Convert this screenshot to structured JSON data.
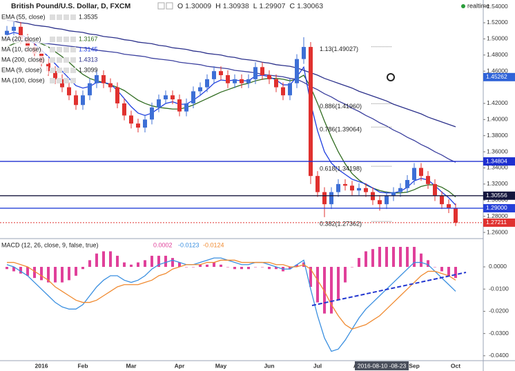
{
  "chart_data": [
    {
      "type": "candlestick",
      "title": "British Pound/U.S. Dollar, D, FXCM",
      "ohlc_readout": [
        {
          "key": "O",
          "value": 1.30009
        },
        {
          "key": "H",
          "value": 1.30938
        },
        {
          "key": "L",
          "value": 1.29907
        },
        {
          "key": "C",
          "value": 1.30063
        }
      ],
      "status": "realtime",
      "open": [
        1.505,
        1.51,
        1.515,
        1.5,
        1.49,
        1.482,
        1.47,
        1.46,
        1.45,
        1.44,
        1.43,
        1.418,
        1.43,
        1.445,
        1.455,
        1.445,
        1.44,
        1.42,
        1.405,
        1.395,
        1.39,
        1.4,
        1.415,
        1.425,
        1.43,
        1.425,
        1.41,
        1.42,
        1.435,
        1.44,
        1.45,
        1.46,
        1.455,
        1.445,
        1.45,
        1.445,
        1.45,
        1.465,
        1.455,
        1.45,
        1.44,
        1.43,
        1.445,
        1.475,
        1.49,
        1.33,
        1.31,
        1.295,
        1.31,
        1.32,
        1.318,
        1.312,
        1.315,
        1.31,
        1.3,
        1.295,
        1.305,
        1.31,
        1.315,
        1.325,
        1.34,
        1.33,
        1.32,
        1.305,
        1.295,
        1.29
      ],
      "high": [
        1.516,
        1.521,
        1.521,
        1.506,
        1.496,
        1.488,
        1.476,
        1.466,
        1.456,
        1.446,
        1.436,
        1.436,
        1.451,
        1.461,
        1.461,
        1.451,
        1.446,
        1.426,
        1.411,
        1.401,
        1.406,
        1.421,
        1.431,
        1.436,
        1.436,
        1.431,
        1.426,
        1.441,
        1.446,
        1.456,
        1.466,
        1.466,
        1.461,
        1.456,
        1.456,
        1.456,
        1.471,
        1.471,
        1.461,
        1.456,
        1.446,
        1.451,
        1.481,
        1.502,
        1.496,
        1.336,
        1.316,
        1.316,
        1.326,
        1.326,
        1.324,
        1.321,
        1.321,
        1.316,
        1.306,
        1.311,
        1.316,
        1.321,
        1.331,
        1.346,
        1.346,
        1.336,
        1.326,
        1.311,
        1.301,
        1.296
      ],
      "low": [
        1.499,
        1.504,
        1.494,
        1.484,
        1.476,
        1.464,
        1.454,
        1.444,
        1.434,
        1.424,
        1.412,
        1.412,
        1.424,
        1.439,
        1.439,
        1.434,
        1.414,
        1.399,
        1.389,
        1.384,
        1.384,
        1.394,
        1.409,
        1.419,
        1.419,
        1.404,
        1.404,
        1.414,
        1.429,
        1.434,
        1.444,
        1.449,
        1.439,
        1.439,
        1.439,
        1.439,
        1.444,
        1.449,
        1.444,
        1.434,
        1.424,
        1.424,
        1.439,
        1.469,
        1.32,
        1.304,
        1.279,
        1.289,
        1.304,
        1.312,
        1.306,
        1.306,
        1.304,
        1.294,
        1.287,
        1.289,
        1.299,
        1.304,
        1.309,
        1.319,
        1.324,
        1.314,
        1.299,
        1.289,
        1.284,
        1.268
      ],
      "close": [
        1.51,
        1.515,
        1.5,
        1.49,
        1.482,
        1.47,
        1.46,
        1.45,
        1.44,
        1.43,
        1.418,
        1.43,
        1.445,
        1.455,
        1.445,
        1.44,
        1.42,
        1.405,
        1.395,
        1.39,
        1.4,
        1.415,
        1.425,
        1.43,
        1.425,
        1.41,
        1.42,
        1.435,
        1.44,
        1.45,
        1.46,
        1.455,
        1.445,
        1.45,
        1.445,
        1.45,
        1.465,
        1.455,
        1.45,
        1.44,
        1.43,
        1.445,
        1.475,
        1.49,
        1.33,
        1.31,
        1.295,
        1.31,
        1.32,
        1.318,
        1.312,
        1.315,
        1.31,
        1.3,
        1.295,
        1.305,
        1.31,
        1.315,
        1.325,
        1.34,
        1.33,
        1.32,
        1.305,
        1.295,
        1.29,
        1.272
      ],
      "up_color": "#3d6fd6",
      "down_color": "#e0312f",
      "series": [
        {
          "name": "EMA (55, close)",
          "last": 1.3535
        },
        {
          "name": "MA (20, close)",
          "last": 1.3167,
          "color": "#2f6b1f",
          "values": [
            1.49,
            1.494,
            1.497,
            1.498,
            1.497,
            1.494,
            1.49,
            1.484,
            1.478,
            1.471,
            1.463,
            1.456,
            1.451,
            1.448,
            1.446,
            1.443,
            1.44,
            1.436,
            1.43,
            1.424,
            1.42,
            1.417,
            1.415,
            1.414,
            1.413,
            1.413,
            1.415,
            1.418,
            1.422,
            1.426,
            1.43,
            1.434,
            1.437,
            1.44,
            1.443,
            1.445,
            1.448,
            1.45,
            1.451,
            1.451,
            1.45,
            1.448,
            1.45,
            1.455,
            1.44,
            1.42,
            1.398,
            1.378,
            1.36,
            1.345,
            1.333,
            1.325,
            1.319,
            1.315,
            1.312,
            1.31,
            1.309,
            1.309,
            1.31,
            1.313,
            1.317,
            1.319,
            1.319,
            1.316,
            1.311,
            1.304
          ]
        },
        {
          "name": "MA (10, close)",
          "last": 1.3145,
          "color": "#1f3fe0",
          "values": [
            1.505,
            1.508,
            1.506,
            1.5,
            1.494,
            1.486,
            1.478,
            1.469,
            1.46,
            1.451,
            1.442,
            1.439,
            1.441,
            1.446,
            1.446,
            1.444,
            1.436,
            1.426,
            1.416,
            1.408,
            1.405,
            1.408,
            1.414,
            1.42,
            1.422,
            1.419,
            1.419,
            1.424,
            1.43,
            1.437,
            1.445,
            1.449,
            1.448,
            1.449,
            1.448,
            1.448,
            1.454,
            1.455,
            1.453,
            1.449,
            1.443,
            1.443,
            1.453,
            1.465,
            1.42,
            1.386,
            1.36,
            1.346,
            1.338,
            1.332,
            1.326,
            1.323,
            1.32,
            1.315,
            1.31,
            1.309,
            1.309,
            1.311,
            1.316,
            1.324,
            1.327,
            1.325,
            1.318,
            1.31,
            1.303,
            1.294
          ]
        },
        {
          "name": "MA (200, close)",
          "last": 1.4313,
          "color": "#2a2f8a",
          "values": [
            1.523,
            1.522,
            1.52,
            1.519,
            1.517,
            1.516,
            1.515,
            1.513,
            1.512,
            1.51,
            1.509,
            1.508,
            1.506,
            1.505,
            1.503,
            1.502,
            1.501,
            1.499,
            1.498,
            1.496,
            1.495,
            1.494,
            1.492,
            1.491,
            1.489,
            1.488,
            1.487,
            1.485,
            1.484,
            1.482,
            1.481,
            1.48,
            1.478,
            1.477,
            1.475,
            1.474,
            1.473,
            1.471,
            1.47,
            1.468,
            1.467,
            1.466,
            1.464,
            1.461,
            1.458,
            1.455,
            1.451,
            1.448,
            1.445,
            1.442,
            1.439,
            1.435,
            1.432,
            1.429,
            1.426,
            1.423,
            1.419,
            1.416,
            1.413,
            1.41,
            1.407,
            1.403,
            1.4,
            1.397,
            1.394,
            1.391
          ]
        },
        {
          "name": "EMA (9, close)",
          "last": 1.3099
        },
        {
          "name": "MA (100, close)",
          "color": "#3a3f9e",
          "values": [
            1.5,
            1.499,
            1.498,
            1.497,
            1.496,
            1.495,
            1.494,
            1.493,
            1.492,
            1.491,
            1.49,
            1.489,
            1.488,
            1.486,
            1.485,
            1.484,
            1.483,
            1.481,
            1.48,
            1.479,
            1.478,
            1.476,
            1.475,
            1.474,
            1.473,
            1.471,
            1.47,
            1.469,
            1.468,
            1.466,
            1.465,
            1.464,
            1.463,
            1.461,
            1.46,
            1.459,
            1.458,
            1.456,
            1.455,
            1.454,
            1.453,
            1.451,
            1.45,
            1.446,
            1.441,
            1.437,
            1.432,
            1.428,
            1.423,
            1.419,
            1.414,
            1.41,
            1.405,
            1.401,
            1.396,
            1.392,
            1.387,
            1.383,
            1.378,
            1.374,
            1.369,
            1.365,
            1.36,
            1.356,
            1.351,
            1.347
          ]
        }
      ],
      "fib_levels": [
        {
          "label": "1.13(1.49027)",
          "value": 1.49027
        },
        {
          "label": "0.886(1.41960)",
          "value": 1.4196
        },
        {
          "label": "0.786(1.39064)",
          "value": 1.39064
        },
        {
          "label": "0.618(1.34198)",
          "value": 1.34198
        },
        {
          "label": "0.382(1.27362)",
          "value": 1.27362
        }
      ],
      "price_levels": [
        {
          "value": 1.45262,
          "label": "1.45262",
          "color": "#2f63d8",
          "line": "none"
        },
        {
          "value": 1.34804,
          "label": "1.34804",
          "color": "#1d2fd0",
          "line": "solid"
        },
        {
          "value": 1.30556,
          "label": "1.30556",
          "color": "#14163d",
          "line": "solid"
        },
        {
          "value": 1.29,
          "label": "1.29000",
          "color": "#2540d8",
          "line": "solid"
        },
        {
          "value": 1.27211,
          "label": "1.27211",
          "color": "#e0312f",
          "line": "dotted"
        }
      ],
      "ylim": [
        1.2532,
        1.5465
      ],
      "yticks": [
        {
          "value": 1.54,
          "label": "1.54000"
        },
        {
          "value": 1.52,
          "label": "1.52000"
        },
        {
          "value": 1.5,
          "label": "1.50000"
        },
        {
          "value": 1.48,
          "label": "1.48000"
        },
        {
          "value": 1.46,
          "label": "1.46000"
        },
        {
          "value": 1.42,
          "label": "1.42000"
        },
        {
          "value": 1.4,
          "label": "1.40000"
        },
        {
          "value": 1.38,
          "label": "1.38000"
        },
        {
          "value": 1.36,
          "label": "1.36000"
        },
        {
          "value": 1.34,
          "label": "1.34000"
        },
        {
          "value": 1.32,
          "label": "1.32000"
        },
        {
          "value": 1.3,
          "label": "1.30000"
        },
        {
          "value": 1.28,
          "label": "1.28000"
        },
        {
          "value": 1.26,
          "label": "1.26000"
        }
      ],
      "grid": false
    },
    {
      "type": "macd",
      "title": "MACD (12, 26, close, 9, false, true)",
      "categories": [
        null,
        null,
        null,
        null,
        null,
        "2016",
        null,
        null,
        null,
        null,
        null,
        "Feb",
        null,
        null,
        null,
        null,
        null,
        null,
        "Mar",
        null,
        null,
        null,
        null,
        null,
        null,
        "Apr",
        null,
        null,
        null,
        null,
        null,
        "May",
        null,
        null,
        null,
        null,
        null,
        null,
        "Jun",
        null,
        null,
        null,
        null,
        null,
        null,
        "Jul",
        null,
        null,
        null,
        null,
        null,
        "Aug",
        null,
        null,
        null,
        null,
        null,
        null,
        null,
        "Sep",
        null,
        null,
        null,
        null,
        null,
        "Oct"
      ],
      "series": [
        {
          "style": "histogram",
          "color": "#e0409a",
          "last": 0.0002,
          "values": [
            -0.001,
            -0.002,
            -0.003,
            -0.004,
            -0.005,
            -0.006,
            -0.007,
            -0.007,
            -0.007,
            -0.006,
            -0.004,
            -0.001,
            0.003,
            0.006,
            0.007,
            0.007,
            0.005,
            0.002,
            0.001,
            0.002,
            0.003,
            0.005,
            0.005,
            0.005,
            0.004,
            0.002,
            0.0,
            0.0,
            0.001,
            0.001,
            0.002,
            0.001,
            0.0,
            -0.001,
            -0.001,
            -0.001,
            0.0,
            0.0,
            -0.001,
            -0.001,
            -0.002,
            -0.001,
            0.001,
            0.002,
            -0.009,
            -0.016,
            -0.021,
            -0.021,
            -0.015,
            -0.007,
            0.0,
            0.004,
            0.007,
            0.008,
            0.009,
            0.009,
            0.009,
            0.009,
            0.009,
            0.009,
            0.006,
            0.003,
            0.0,
            -0.002,
            -0.004,
            -0.005
          ]
        },
        {
          "style": "line",
          "color": "#3a8fe0",
          "last": -0.0123,
          "values": [
            0.001,
            0.0,
            -0.002,
            -0.004,
            -0.007,
            -0.01,
            -0.013,
            -0.016,
            -0.018,
            -0.019,
            -0.019,
            -0.017,
            -0.013,
            -0.009,
            -0.006,
            -0.004,
            -0.004,
            -0.006,
            -0.007,
            -0.006,
            -0.004,
            -0.001,
            0.001,
            0.002,
            0.003,
            0.002,
            0.001,
            0.001,
            0.002,
            0.003,
            0.004,
            0.004,
            0.003,
            0.002,
            0.001,
            0.001,
            0.002,
            0.002,
            0.001,
            0.0,
            -0.001,
            -0.001,
            0.001,
            0.003,
            -0.01,
            -0.022,
            -0.032,
            -0.038,
            -0.037,
            -0.033,
            -0.028,
            -0.023,
            -0.019,
            -0.016,
            -0.013,
            -0.01,
            -0.007,
            -0.004,
            -0.001,
            0.002,
            0.002,
            0.001,
            -0.002,
            -0.005,
            -0.008,
            -0.011
          ]
        },
        {
          "style": "line",
          "color": "#f08a30",
          "last": -0.0124,
          "values": [
            0.002,
            0.002,
            0.001,
            0.0,
            -0.002,
            -0.004,
            -0.006,
            -0.009,
            -0.011,
            -0.013,
            -0.015,
            -0.016,
            -0.016,
            -0.015,
            -0.013,
            -0.011,
            -0.009,
            -0.008,
            -0.008,
            -0.008,
            -0.007,
            -0.006,
            -0.004,
            -0.003,
            -0.001,
            0.0,
            0.001,
            0.001,
            0.001,
            0.002,
            0.002,
            0.003,
            0.003,
            0.003,
            0.002,
            0.002,
            0.002,
            0.002,
            0.002,
            0.001,
            0.001,
            0.0,
            0.0,
            0.001,
            -0.001,
            -0.006,
            -0.011,
            -0.017,
            -0.022,
            -0.026,
            -0.028,
            -0.027,
            -0.026,
            -0.024,
            -0.022,
            -0.019,
            -0.016,
            -0.013,
            -0.01,
            -0.007,
            -0.004,
            -0.002,
            -0.002,
            -0.003,
            -0.004,
            -0.006
          ]
        }
      ],
      "ylim": [
        -0.0419,
        0.0121
      ],
      "yticks": [
        {
          "value": 0,
          "label": "0.0000"
        },
        {
          "value": -0.01,
          "label": "-0.0100"
        },
        {
          "value": -0.02,
          "label": "-0.0200"
        },
        {
          "value": -0.03,
          "label": "-0.0300"
        },
        {
          "value": -0.04,
          "label": "-0.0400"
        }
      ],
      "crosshair_label": "2016-08-10 -08-23"
    }
  ]
}
